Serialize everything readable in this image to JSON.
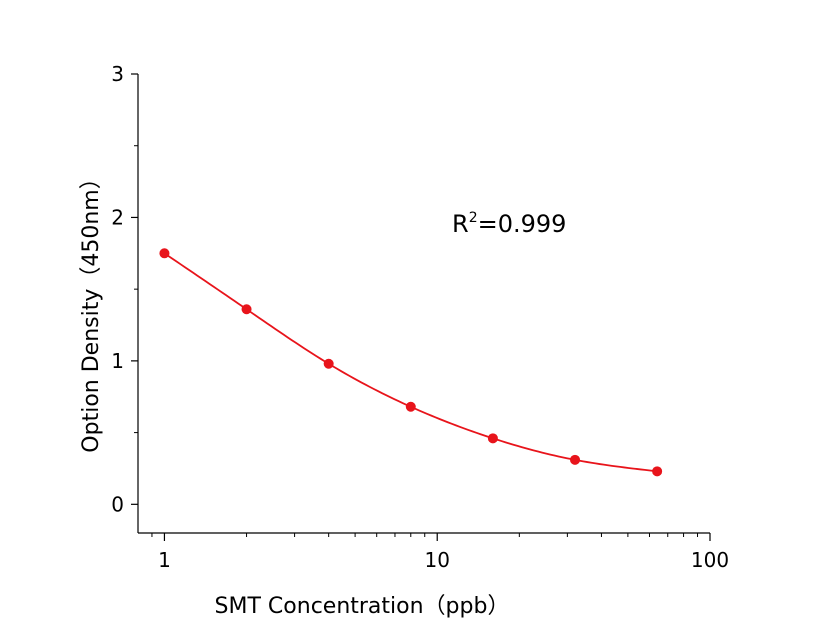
{
  "chart_data": {
    "type": "scatter",
    "xlabel": "SMT Concentration（ppb）",
    "ylabel": "Option Density（450nm）",
    "x_scale": "log",
    "xlim": [
      0.8,
      100
    ],
    "ylim": [
      -0.2,
      3
    ],
    "x_ticks": [
      1,
      10,
      100
    ],
    "x_tick_labels": [
      "1",
      "10",
      "100"
    ],
    "y_ticks": [
      0,
      1,
      2,
      3
    ],
    "y_tick_labels": [
      "0",
      "1",
      "2",
      "3"
    ],
    "grid": false,
    "legend": "none",
    "series": [
      {
        "color": "#e8141b",
        "x": [
          1,
          2,
          4,
          8,
          16,
          32,
          64
        ],
        "y": [
          1.75,
          1.36,
          0.98,
          0.68,
          0.46,
          0.31,
          0.23
        ]
      }
    ],
    "annotation": {
      "base": "R",
      "superscript": "2",
      "text": "=0.999"
    }
  }
}
